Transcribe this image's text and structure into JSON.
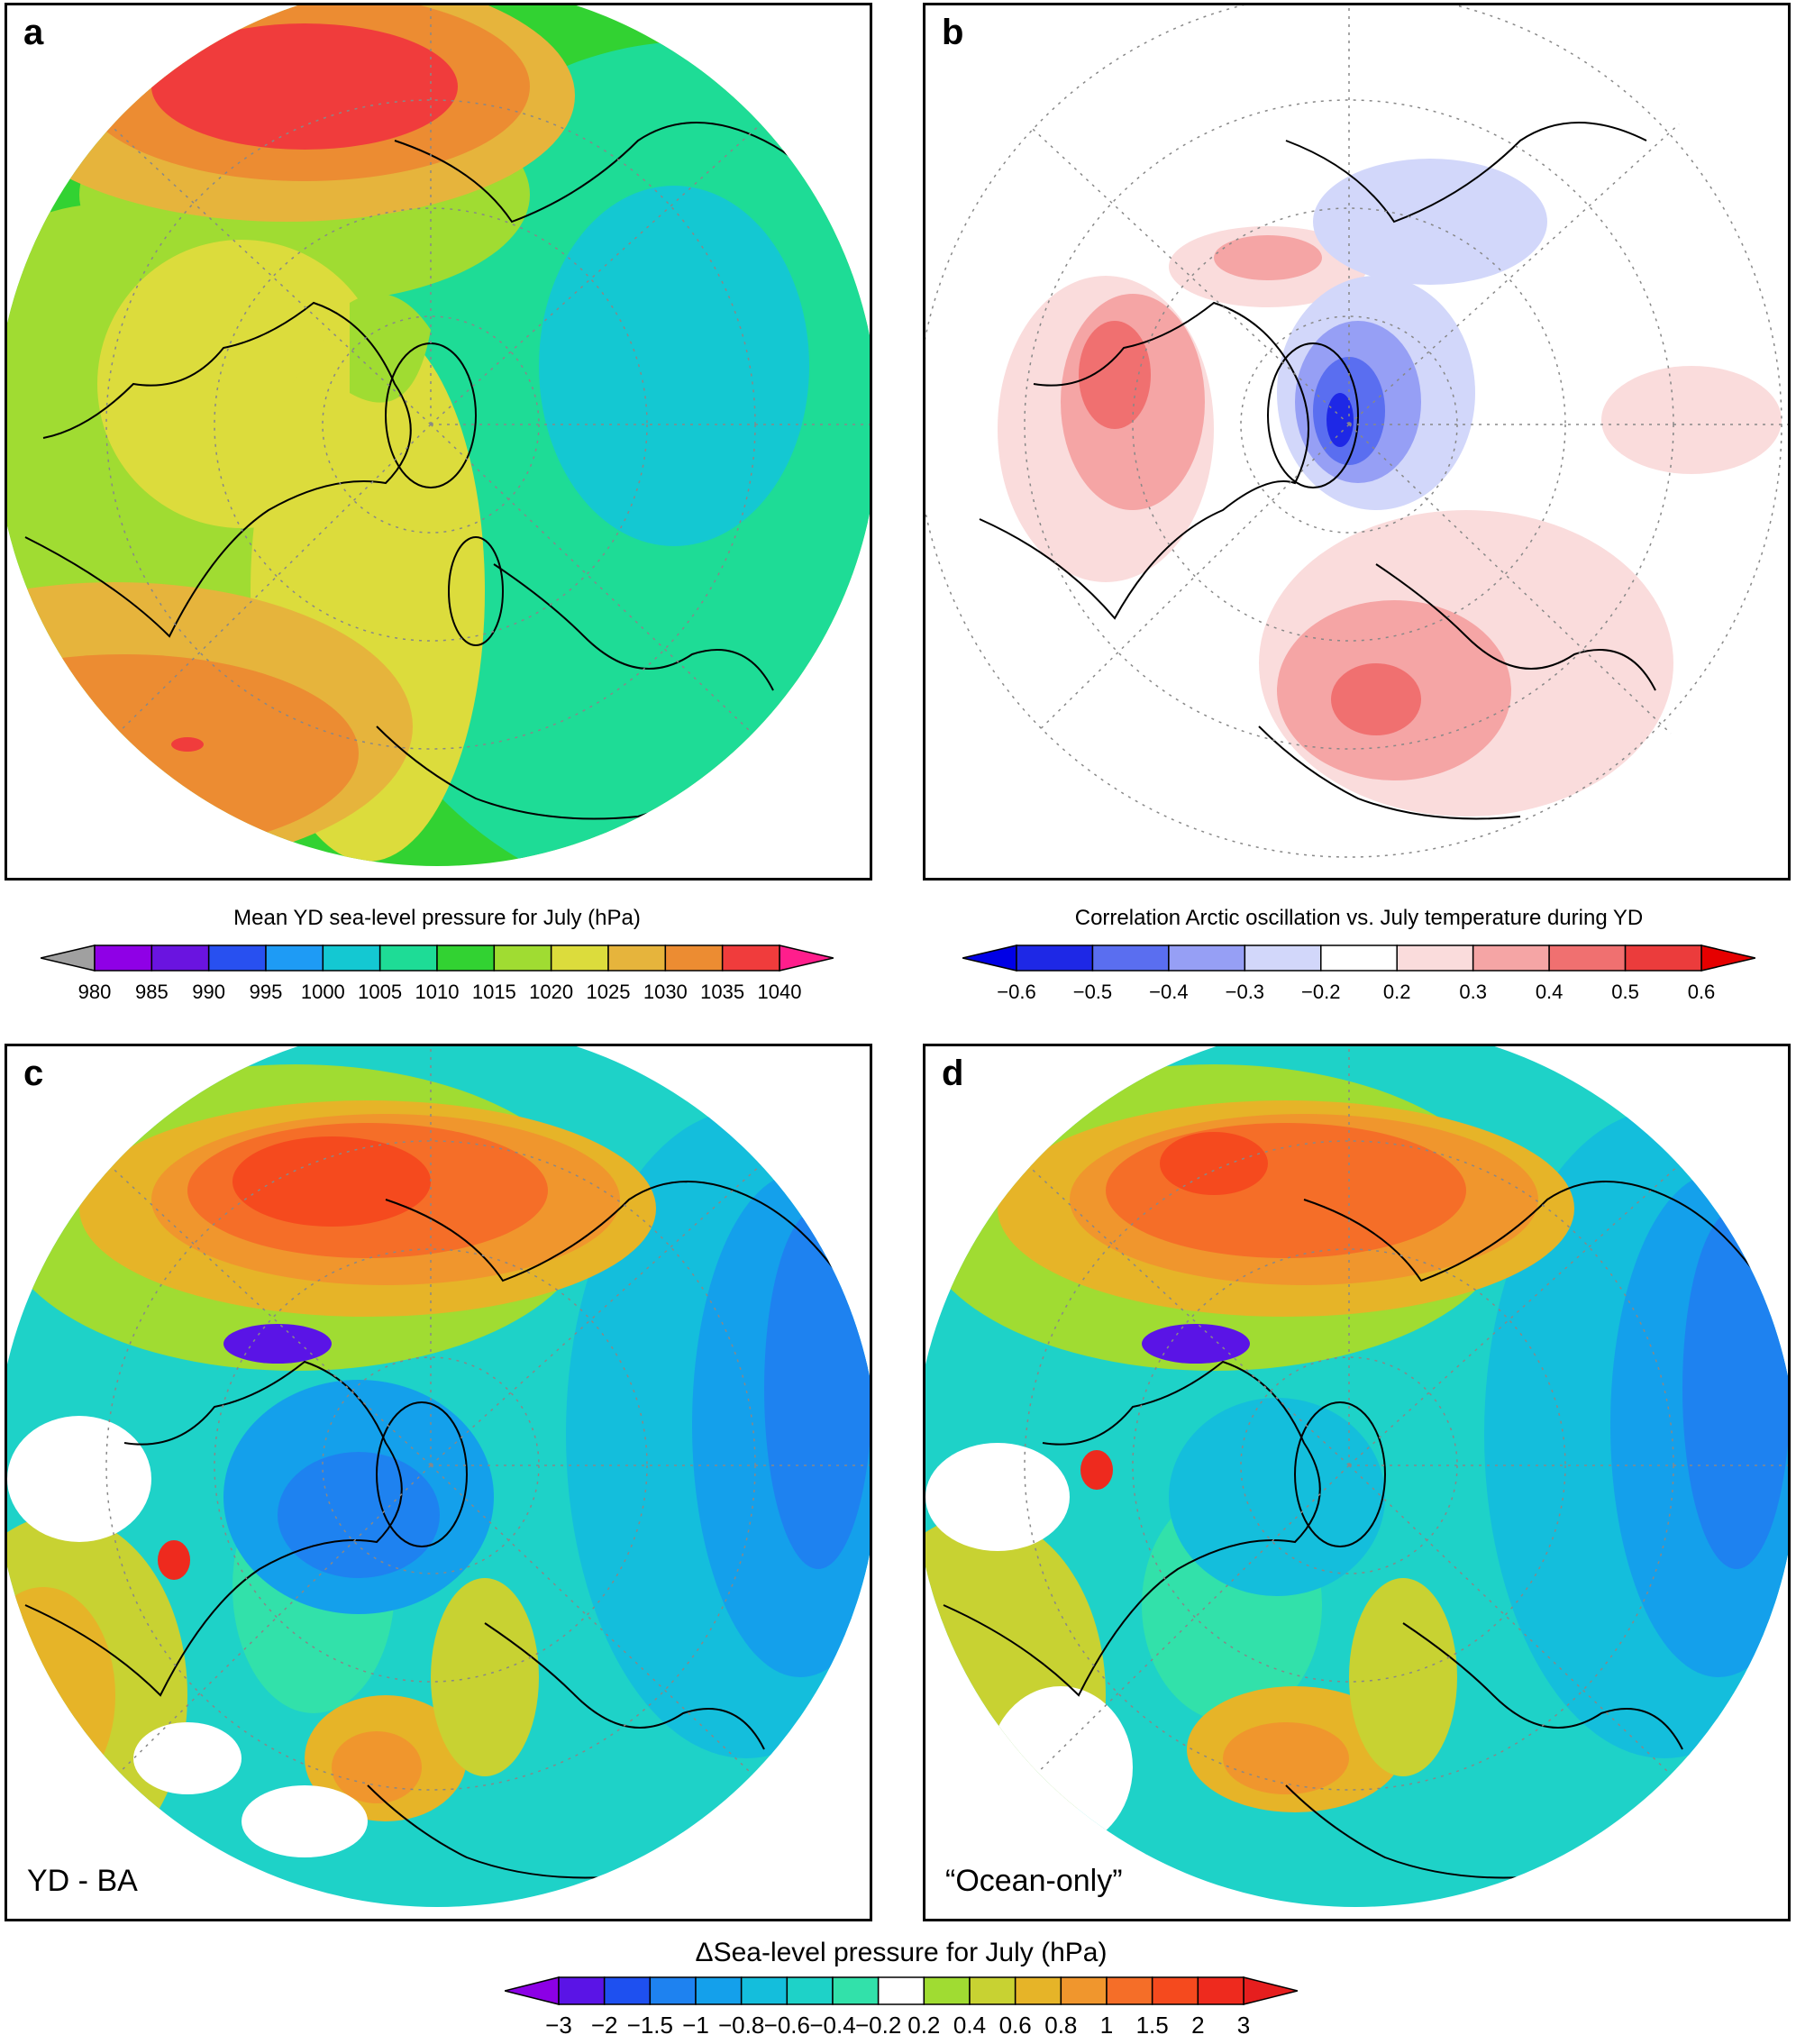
{
  "panels": [
    {
      "letter": "a",
      "caption": ""
    },
    {
      "letter": "b",
      "caption": ""
    },
    {
      "letter": "c",
      "caption": "YD - BA"
    },
    {
      "letter": "d",
      "caption": "“Ocean-only”"
    }
  ],
  "colorbars": {
    "slp": {
      "title": "Mean YD sea-level pressure for July (hPa)",
      "labels": [
        "980",
        "985",
        "990",
        "995",
        "1000",
        "1005",
        "1010",
        "1015",
        "1020",
        "1025",
        "1030",
        "1035",
        "1040"
      ],
      "under_color": "#a0a0a0",
      "over_color": "#ff1e8c",
      "colors": [
        "#8f00e6",
        "#6a14e0",
        "#2850f0",
        "#1e9bf5",
        "#14c8d2",
        "#1edc96",
        "#32d232",
        "#a0dc32",
        "#dcdc3c",
        "#e6b43c",
        "#ec8c32",
        "#f03c3c"
      ]
    },
    "corr": {
      "title": "Correlation Arctic oscillation vs. July temperature during YD",
      "labels": [
        "−0.6",
        "−0.5",
        "−0.4",
        "−0.3",
        "−0.2",
        "0.2",
        "0.3",
        "0.4",
        "0.5",
        "0.6"
      ],
      "under_color": "#0000e6",
      "over_color": "#e60000",
      "colors": [
        "#1e28e6",
        "#5a6ef0",
        "#969ff5",
        "#d2d7fa",
        "#ffffff",
        "#fadcdc",
        "#f5a5a5",
        "#f07070",
        "#eb3c3c"
      ]
    },
    "dslp": {
      "title": "ΔSea-level pressure for July (hPa)",
      "labels": [
        "−3",
        "−2",
        "−1.5",
        "−1",
        "−0.8",
        "−0.6",
        "−0.4",
        "−0.2",
        "0.2",
        "0.4",
        "0.6",
        "0.8",
        "1",
        "1.5",
        "2",
        "3"
      ],
      "under_color": "#8c00e6",
      "over_color": "#e61e1e",
      "colors": [
        "#5a14e6",
        "#1e50f0",
        "#1e82f0",
        "#14a0eb",
        "#14bedc",
        "#1ed2c8",
        "#32e1aa",
        "#ffffff",
        "#a0dc32",
        "#c8d232",
        "#e6b428",
        "#f0962d",
        "#f56e28",
        "#f54a1e",
        "#ee2a1e"
      ]
    }
  }
}
